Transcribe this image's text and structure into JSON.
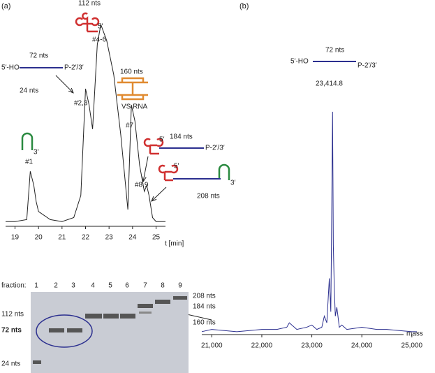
{
  "panel_labels": [
    "(a)",
    "(b)"
  ],
  "chart_data": [
    {
      "type": "line",
      "x_label": "t [min]",
      "x": [
        18.6,
        19.0,
        19.5,
        19.65,
        19.8,
        19.9,
        20.0,
        20.5,
        21.0,
        21.5,
        21.8,
        22.0,
        22.15,
        22.3,
        22.5,
        22.65,
        22.9,
        23.2,
        23.5,
        23.8,
        23.95,
        24.1,
        24.3,
        24.5,
        24.6,
        24.7,
        24.85,
        25.0,
        25.4
      ],
      "values": [
        2,
        2,
        3,
        27,
        20,
        12,
        7,
        3,
        2,
        4,
        15,
        68,
        60,
        48,
        90,
        100,
        92,
        75,
        45,
        8,
        60,
        52,
        30,
        17,
        20,
        15,
        4,
        2,
        2
      ],
      "color": "#222222",
      "xlim": [
        18.6,
        25.4
      ],
      "xticks": [
        19,
        20,
        21,
        22,
        23,
        24,
        25
      ],
      "ylim": [
        0,
        100
      ],
      "annotations": [
        "112 nts",
        "5′",
        "#4-6",
        "5′-HO",
        "72 nts",
        "P-2′/3′",
        "#2,3",
        "160 nts",
        "VS RNA",
        "24 nts",
        "3′",
        "#1",
        "#7",
        "184 nts",
        "5′",
        "P-2′/3′",
        "#8,9",
        "5′",
        "3′",
        "208 nts"
      ]
    },
    {
      "type": "line",
      "x_label": "mass",
      "x": [
        20800,
        21000,
        21500,
        22000,
        22300,
        22500,
        22550,
        22700,
        22900,
        23000,
        23100,
        23200,
        23250,
        23300,
        23350,
        23380,
        23400,
        23414.8,
        23430,
        23450,
        23470,
        23500,
        23550,
        23600,
        23700,
        24000,
        24300,
        24500,
        25000,
        25100
      ],
      "values": [
        1,
        2,
        1,
        2,
        2,
        3,
        5,
        2,
        3,
        4,
        2,
        3,
        8,
        5,
        25,
        10,
        60,
        100,
        40,
        20,
        8,
        12,
        3,
        4,
        2,
        3,
        2,
        2,
        1,
        1
      ],
      "color": "#2b2f8f",
      "xlim": [
        20800,
        25100
      ],
      "xticks": [
        {
          "value": 21000,
          "label": "21,000"
        },
        {
          "value": 22000,
          "label": "22,000"
        },
        {
          "value": 23000,
          "label": "23,000"
        },
        {
          "value": 24000,
          "label": "24,000"
        },
        {
          "value": 25000,
          "label": "25,000"
        }
      ],
      "ylim": [
        0,
        100
      ],
      "annotations": [
        "72 nts",
        "5′-HO",
        "P-2′/3′",
        "23,414.8"
      ]
    }
  ],
  "gel": {
    "fraction_label": "fraction:",
    "lanes": [
      "1",
      "2",
      "3",
      "4",
      "5",
      "6",
      "7",
      "8",
      "9"
    ],
    "left_labels": [
      "112 nts",
      "72 nts",
      "24 nts"
    ],
    "right_labels": [
      "208 nts",
      "184 nts",
      "160 nts"
    ]
  }
}
